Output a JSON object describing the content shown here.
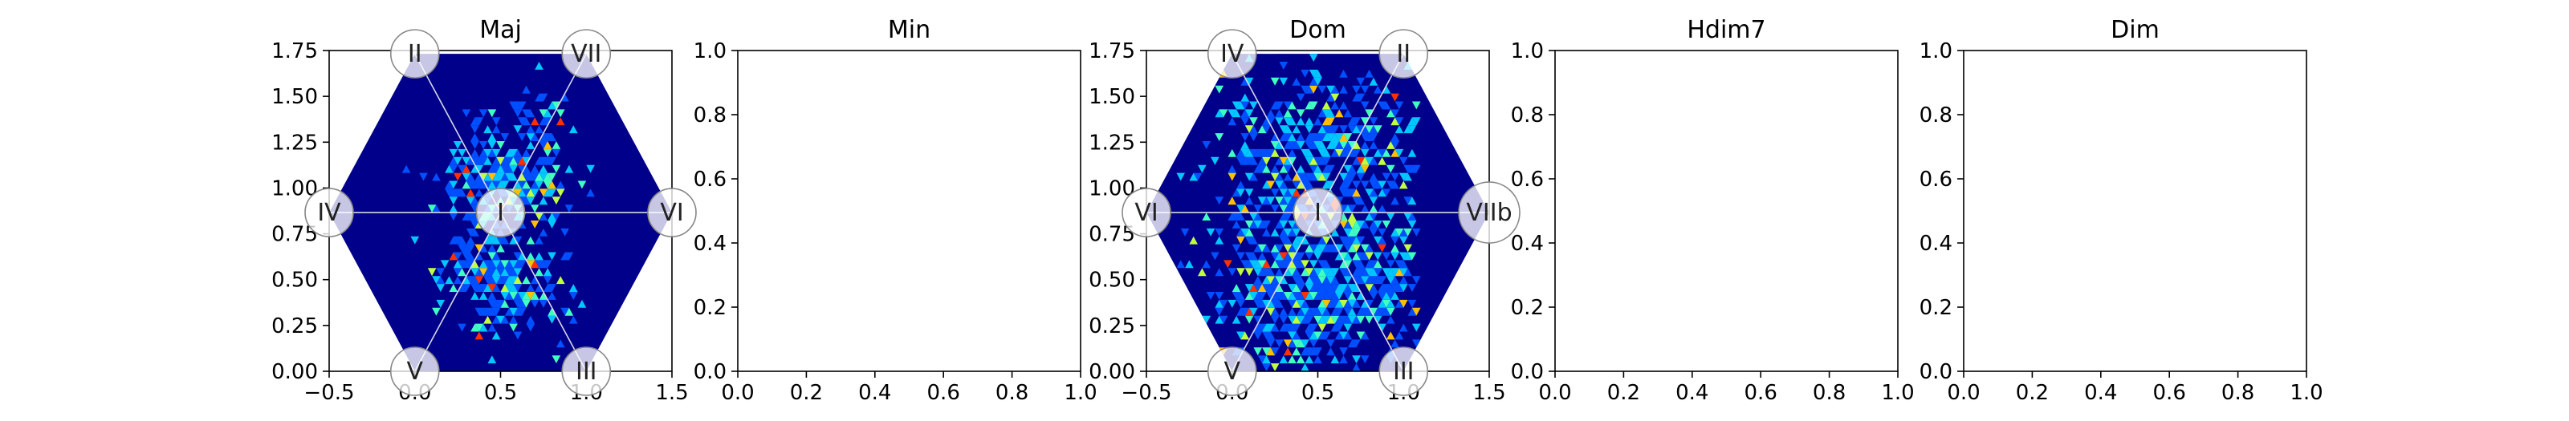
{
  "chart_data": [
    {
      "type": "heatmap",
      "title": "Maj",
      "xlim": [
        -0.5,
        1.5
      ],
      "ylim": [
        0,
        1.75
      ],
      "xticks": [
        "−0.5",
        "0.0",
        "0.5",
        "1.0",
        "1.5"
      ],
      "yticks": [
        "0.00",
        "0.25",
        "0.50",
        "0.75",
        "1.00",
        "1.25",
        "1.50",
        "1.75"
      ],
      "grid": false,
      "has_data": true,
      "hexagon": true,
      "background_color": "#00008b",
      "colormap": [
        "#0000a8",
        "#0050ff",
        "#00c8ff",
        "#40ffc0",
        "#c0ff40",
        "#ffc000",
        "#ff3000"
      ],
      "nodes": [
        {
          "label": "I",
          "x": 0.5,
          "y": 0.866
        },
        {
          "label": "II",
          "x": 0.0,
          "y": 1.732
        },
        {
          "label": "VII",
          "x": 1.0,
          "y": 1.732
        },
        {
          "label": "IV",
          "x": -0.5,
          "y": 0.866
        },
        {
          "label": "VI",
          "x": 1.5,
          "y": 0.866
        },
        {
          "label": "V",
          "x": 0.0,
          "y": 0.0
        },
        {
          "label": "III",
          "x": 1.0,
          "y": 0.0
        }
      ],
      "clusters": [
        {
          "x": 0.4,
          "y": 1.05,
          "spread": 0.16,
          "weight": 1.3
        },
        {
          "x": 0.68,
          "y": 1.05,
          "spread": 0.18,
          "weight": 1.0
        },
        {
          "x": 0.4,
          "y": 0.55,
          "spread": 0.15,
          "weight": 1.2
        },
        {
          "x": 0.6,
          "y": 0.45,
          "spread": 0.16,
          "weight": 1.0
        },
        {
          "x": 0.7,
          "y": 1.4,
          "spread": 0.12,
          "weight": 0.6
        }
      ]
    },
    {
      "type": "heatmap",
      "title": "Min",
      "xlim": [
        0,
        1
      ],
      "ylim": [
        0,
        1
      ],
      "xticks": [
        "0.0",
        "0.2",
        "0.4",
        "0.6",
        "0.8",
        "1.0"
      ],
      "yticks": [
        "0.0",
        "0.2",
        "0.4",
        "0.6",
        "0.8",
        "1.0"
      ],
      "grid": false,
      "has_data": false
    },
    {
      "type": "heatmap",
      "title": "Dom",
      "xlim": [
        -0.5,
        1.5
      ],
      "ylim": [
        0,
        1.75
      ],
      "xticks": [
        "−0.5",
        "0.0",
        "0.5",
        "1.0",
        "1.5"
      ],
      "yticks": [
        "0.00",
        "0.25",
        "0.50",
        "0.75",
        "1.00",
        "1.25",
        "1.50",
        "1.75"
      ],
      "grid": false,
      "has_data": true,
      "hexagon": true,
      "background_color": "#00008b",
      "colormap": [
        "#0000a8",
        "#0050ff",
        "#00c8ff",
        "#40ffc0",
        "#c0ff40",
        "#ffc000",
        "#ff3000"
      ],
      "nodes": [
        {
          "label": "I",
          "x": 0.5,
          "y": 0.866
        },
        {
          "label": "IV",
          "x": 0.0,
          "y": 1.732
        },
        {
          "label": "II",
          "x": 1.0,
          "y": 1.732
        },
        {
          "label": "VI",
          "x": -0.5,
          "y": 0.866
        },
        {
          "label": "VIIb",
          "x": 1.5,
          "y": 0.866
        },
        {
          "label": "V",
          "x": 0.0,
          "y": 0.0
        },
        {
          "label": "III",
          "x": 1.0,
          "y": 0.0
        }
      ],
      "clusters": [
        {
          "x": 0.2,
          "y": 0.5,
          "spread": 0.22,
          "weight": 1.3
        },
        {
          "x": 0.85,
          "y": 0.55,
          "spread": 0.25,
          "weight": 1.1
        },
        {
          "x": 0.3,
          "y": 1.2,
          "spread": 0.25,
          "weight": 1.0
        },
        {
          "x": 0.75,
          "y": 1.2,
          "spread": 0.25,
          "weight": 1.0
        },
        {
          "x": 0.5,
          "y": 0.3,
          "spread": 0.2,
          "weight": 0.8
        }
      ]
    },
    {
      "type": "heatmap",
      "title": "Hdim7",
      "xlim": [
        0,
        1
      ],
      "ylim": [
        0,
        1
      ],
      "xticks": [
        "0.0",
        "0.2",
        "0.4",
        "0.6",
        "0.8",
        "1.0"
      ],
      "yticks": [
        "0.0",
        "0.2",
        "0.4",
        "0.6",
        "0.8",
        "1.0"
      ],
      "grid": false,
      "has_data": false
    },
    {
      "type": "heatmap",
      "title": "Dim",
      "xlim": [
        0,
        1
      ],
      "ylim": [
        0,
        1
      ],
      "xticks": [
        "0.0",
        "0.2",
        "0.4",
        "0.6",
        "0.8",
        "1.0"
      ],
      "yticks": [
        "0.0",
        "0.2",
        "0.4",
        "0.6",
        "0.8",
        "1.0"
      ],
      "grid": false,
      "has_data": false
    }
  ]
}
